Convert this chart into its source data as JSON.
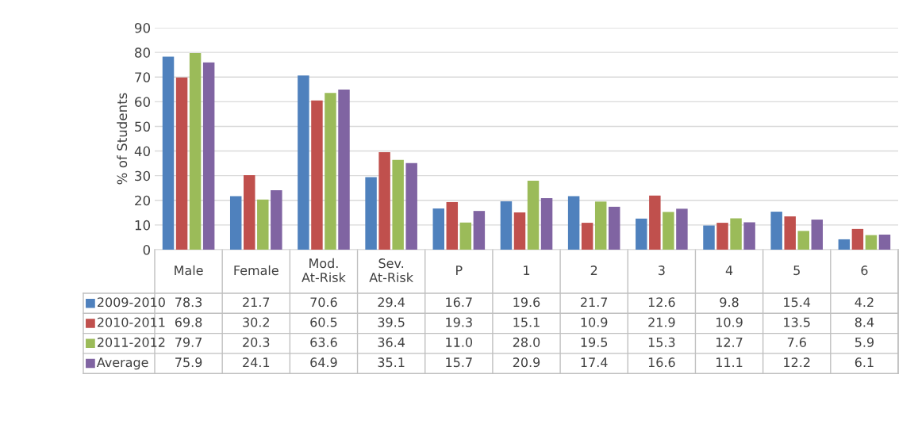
{
  "chart_data": {
    "type": "bar",
    "ylabel": "% of Students",
    "categories": [
      "Male",
      "Female",
      "Mod. At-Risk",
      "Sev. At-Risk",
      "P",
      "1",
      "2",
      "3",
      "4",
      "5",
      "6"
    ],
    "series": [
      {
        "name": "2009-2010",
        "color": "#4f81bd",
        "values": [
          78.3,
          21.7,
          70.6,
          29.4,
          16.7,
          19.6,
          21.7,
          12.6,
          9.8,
          15.4,
          4.2
        ]
      },
      {
        "name": "2010-2011",
        "color": "#c0504d",
        "values": [
          69.8,
          30.2,
          60.5,
          39.5,
          19.3,
          15.1,
          10.9,
          21.9,
          10.9,
          13.5,
          8.4
        ]
      },
      {
        "name": "2011-2012",
        "color": "#9bbb59",
        "values": [
          79.7,
          20.3,
          63.6,
          36.4,
          11.0,
          28.0,
          19.5,
          15.3,
          12.7,
          7.6,
          5.9
        ],
        "value_labels": [
          "79.7",
          "20.3",
          "63.6",
          "36.4",
          "11.0",
          "28.0",
          "19.5",
          "15.3",
          "12.7",
          "7.6",
          "5.9"
        ]
      },
      {
        "name": "Average",
        "color": "#8064a2",
        "values": [
          75.9,
          24.1,
          64.9,
          35.1,
          15.7,
          20.9,
          17.4,
          16.6,
          11.1,
          12.2,
          6.1
        ]
      }
    ],
    "ylim": [
      0,
      90
    ],
    "yticks": [
      0,
      10,
      20,
      30,
      40,
      50,
      60,
      70,
      80,
      90
    ],
    "grid": "y",
    "data_labels": true,
    "legend": "bottom left"
  }
}
